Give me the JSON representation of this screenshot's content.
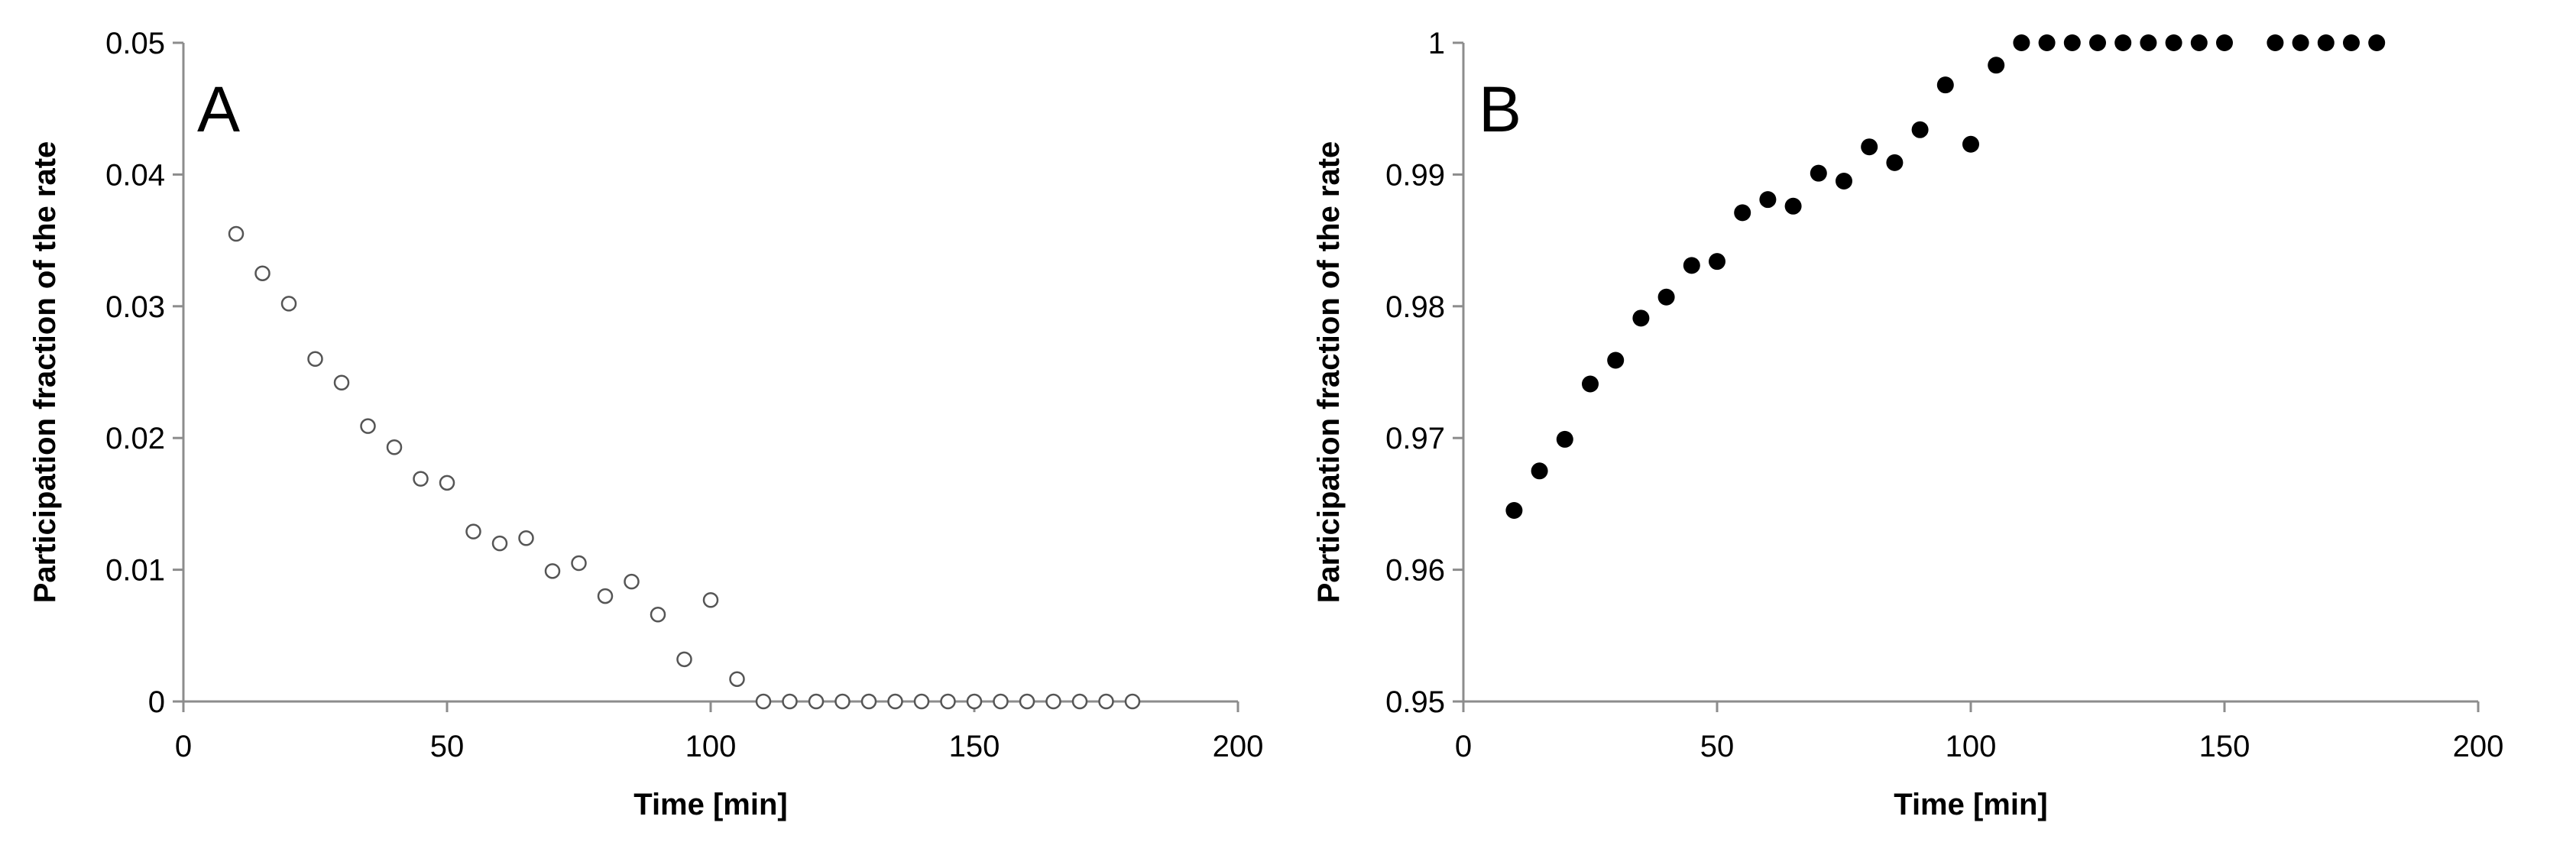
{
  "chart_data": [
    {
      "type": "scatter",
      "panel_label": "A",
      "xlabel": "Time [min]",
      "ylabel": "Participation fraction of the rate",
      "xlim": [
        0,
        200
      ],
      "ylim": [
        0,
        0.05
      ],
      "x_ticks": [
        0,
        50,
        100,
        150,
        200
      ],
      "y_ticks": [
        0,
        0.01,
        0.02,
        0.03,
        0.04,
        0.05
      ],
      "x_tick_labels": [
        "0",
        "50",
        "100",
        "150",
        "200"
      ],
      "y_tick_labels": [
        "0",
        "0.01",
        "0.02",
        "0.03",
        "0.04",
        "0.05"
      ],
      "grid": false,
      "marker": "open-circle",
      "color": "#555555",
      "x": [
        10,
        15,
        20,
        25,
        30,
        35,
        40,
        45,
        50,
        55,
        60,
        65,
        70,
        75,
        80,
        85,
        90,
        95,
        100,
        105,
        110,
        115,
        120,
        125,
        130,
        135,
        140,
        145,
        150,
        155,
        160,
        165,
        170,
        175,
        180
      ],
      "y": [
        0.0355,
        0.0325,
        0.0302,
        0.026,
        0.0242,
        0.0209,
        0.0193,
        0.0169,
        0.0166,
        0.0129,
        0.012,
        0.0124,
        0.0099,
        0.0105,
        0.008,
        0.0091,
        0.0066,
        0.0032,
        0.0077,
        0.0017,
        0,
        0,
        0,
        0,
        0,
        0,
        0,
        0,
        0,
        0,
        0,
        0,
        0,
        0,
        0
      ]
    },
    {
      "type": "scatter",
      "panel_label": "B",
      "xlabel": "Time [min]",
      "ylabel": "Participation fraction of the rate",
      "xlim": [
        0,
        200
      ],
      "ylim": [
        0.95,
        1
      ],
      "x_ticks": [
        0,
        50,
        100,
        150,
        200
      ],
      "y_ticks": [
        0.95,
        0.96,
        0.97,
        0.98,
        0.99,
        1
      ],
      "x_tick_labels": [
        "0",
        "50",
        "100",
        "150",
        "200"
      ],
      "y_tick_labels": [
        "0.95",
        "0.96",
        "0.97",
        "0.98",
        "0.99",
        "1"
      ],
      "grid": false,
      "marker": "filled-circle",
      "color": "#000000",
      "x": [
        10,
        15,
        20,
        25,
        30,
        35,
        40,
        45,
        50,
        55,
        60,
        65,
        70,
        75,
        80,
        85,
        90,
        95,
        100,
        105,
        110,
        115,
        120,
        125,
        130,
        135,
        140,
        145,
        150,
        160,
        165,
        170,
        175,
        180
      ],
      "y": [
        0.9645,
        0.9675,
        0.9699,
        0.9741,
        0.9759,
        0.9791,
        0.9807,
        0.9831,
        0.9834,
        0.9871,
        0.9881,
        0.9876,
        0.9901,
        0.9895,
        0.9921,
        0.9909,
        0.9934,
        0.9968,
        0.9923,
        0.9983,
        1,
        1,
        1,
        1,
        1,
        1,
        1,
        1,
        1,
        1,
        1,
        1,
        1,
        1
      ]
    }
  ]
}
